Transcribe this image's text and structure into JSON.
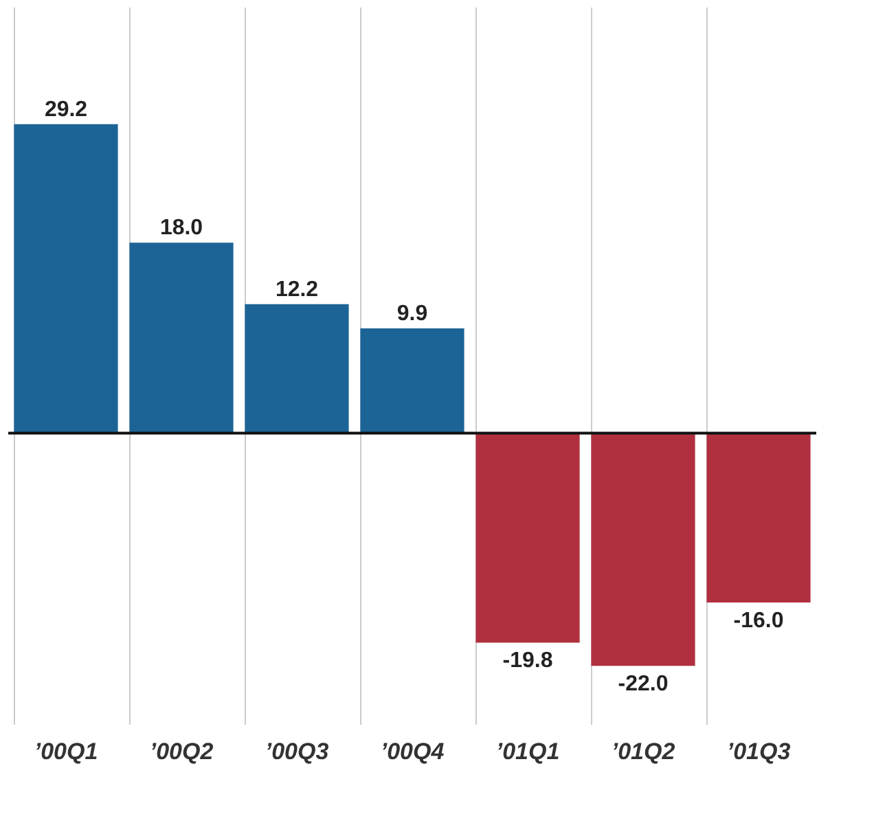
{
  "chart_data": {
    "type": "bar",
    "categories": [
      "’00Q1",
      "’00Q2",
      "’00Q3",
      "’00Q4",
      "’01Q1",
      "’01Q2",
      "’01Q3"
    ],
    "values": [
      29.2,
      18.0,
      12.2,
      9.9,
      -19.8,
      -22.0,
      -16.0
    ],
    "value_labels": [
      "29.2",
      "18.0",
      "12.2",
      "9.9",
      "-19.8",
      "-22.0",
      "-16.0"
    ],
    "colors": [
      "#1d6496",
      "#1d6496",
      "#1d6496",
      "#1d6496",
      "#b0303f",
      "#b0303f",
      "#b0303f"
    ],
    "grid": "x"
  }
}
